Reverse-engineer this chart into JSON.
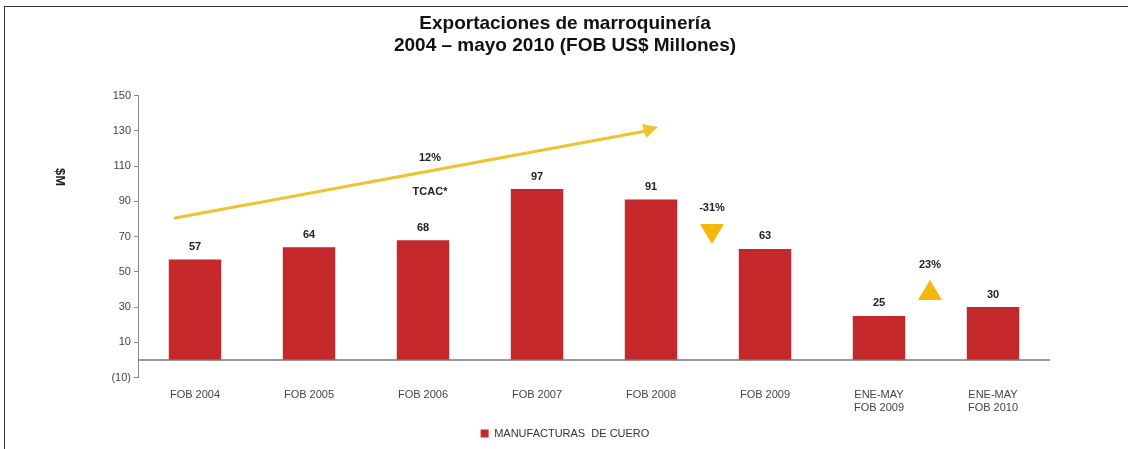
{
  "chart_data": {
    "type": "bar",
    "title": "Exportaciones de marroquinería\n2004 – mayo 2010 (FOB US$ Millones)",
    "ylabel": "$M",
    "categories": [
      "FOB 2004",
      "FOB 2005",
      "FOB 2006",
      "FOB 2007",
      "FOB 2008",
      "FOB 2009",
      "ENE-MAY\nFOB 2009",
      "ENE-MAY\nFOB 2010"
    ],
    "series": [
      {
        "name": "MANUFACTURAS  DE CUERO",
        "color": "#c4282b",
        "values": [
          57,
          64,
          68,
          97,
          91,
          63,
          25,
          30
        ]
      }
    ],
    "ylim": [
      -10,
      150
    ],
    "yticks": [
      {
        "value": -10,
        "label": "(10)"
      },
      10,
      30,
      50,
      70,
      90,
      110,
      130,
      150
    ],
    "annotations": [
      "12%",
      "TCAC*",
      "-31%",
      "23%"
    ],
    "data_labels": true,
    "grid": false,
    "legend": "bottom"
  }
}
